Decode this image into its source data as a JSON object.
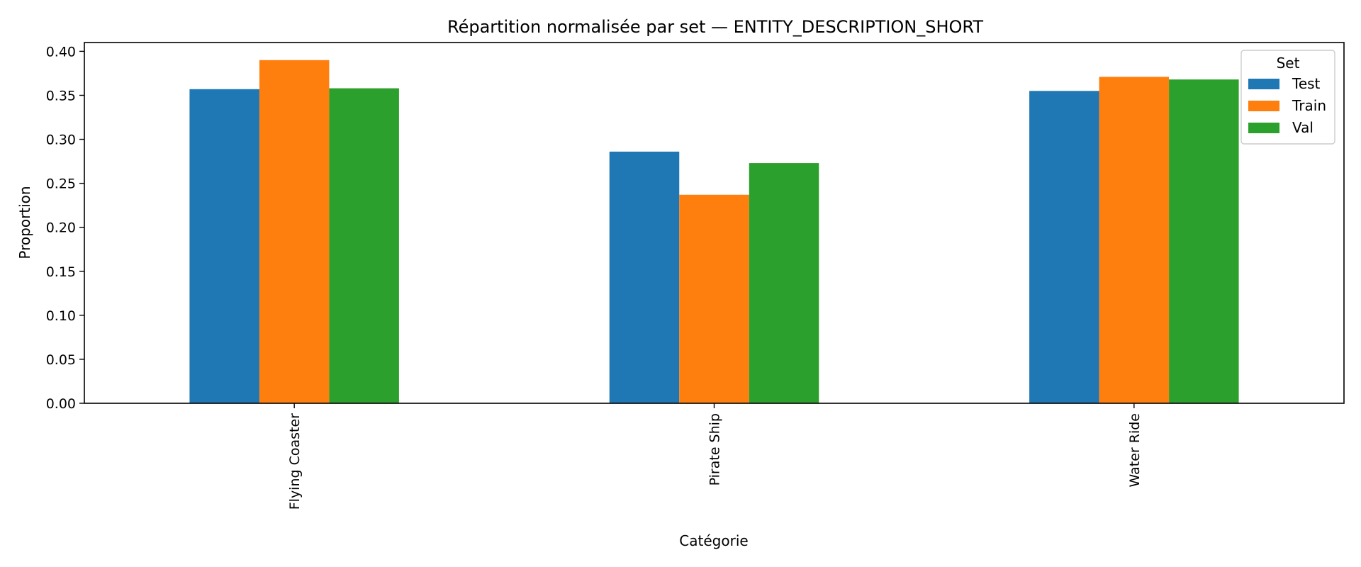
{
  "chart_data": {
    "type": "bar",
    "title": "Répartition normalisée par set — ENTITY_DESCRIPTION_SHORT",
    "xlabel": "Catégorie",
    "ylabel": "Proportion",
    "categories": [
      "Flying Coaster",
      "Pirate Ship",
      "Water Ride"
    ],
    "series": [
      {
        "name": "Test",
        "color": "#1f77b4",
        "values": [
          0.357,
          0.286,
          0.355
        ]
      },
      {
        "name": "Train",
        "color": "#ff7f0e",
        "values": [
          0.39,
          0.237,
          0.371
        ]
      },
      {
        "name": "Val",
        "color": "#2ca02c",
        "values": [
          0.358,
          0.273,
          0.368
        ]
      }
    ],
    "ylim": [
      0,
      0.41
    ],
    "yticks": [
      "0.00",
      "0.05",
      "0.10",
      "0.15",
      "0.20",
      "0.25",
      "0.30",
      "0.35",
      "0.40"
    ],
    "grid": false,
    "legend": {
      "title": "Set",
      "position": "top-right"
    },
    "x_tick_rotation": "vertical"
  }
}
